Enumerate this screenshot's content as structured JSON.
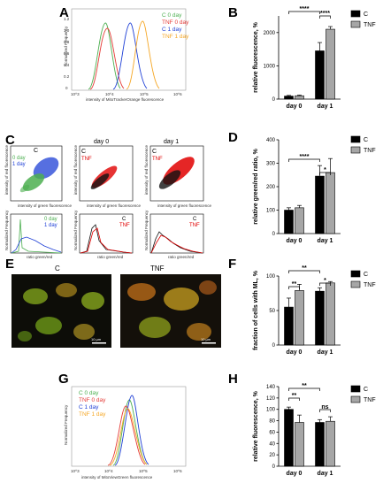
{
  "colors": {
    "c0": "#4caf50",
    "tnf0": "#e53935",
    "c1": "#1e3fd6",
    "tnf1": "#f5a623",
    "barC": "#000000",
    "barTNF": "#a6a6a6",
    "red": "#e00000",
    "black": "#111111"
  },
  "panels": {
    "A": "A",
    "B": "B",
    "C": "C",
    "D": "D",
    "E": "E",
    "F": "F",
    "G": "G",
    "H": "H"
  },
  "panelA": {
    "ylabel": "Normalized Frequency",
    "xlabel": "intensity of MitoTrackerOrange fluorescence",
    "xticks": [
      "10^3",
      "10^4",
      "10^5",
      "10^6"
    ],
    "yticks": [
      "0",
      "0.2",
      "0.4",
      "0.6",
      "0.8",
      "1.0",
      "1.2"
    ],
    "legend": [
      "C 0 day",
      "TNF 0 day",
      "C 1 day",
      "TNF 1 day"
    ]
  },
  "panelC": {
    "tl": {
      "title": "C",
      "legend": [
        "0 day",
        "1 day"
      ]
    },
    "tm": {
      "title": "day 0",
      "inner": "C",
      "legend2": "TNF"
    },
    "tr": {
      "title": "day 1",
      "inner": "C",
      "legend2": "TNF"
    },
    "scatter_xlabel": "intensity of green fluorescence",
    "scatter_ylabel": "intensity of red fluorescence",
    "hist_xlabel": "ratio green/red",
    "hist_ylabel": "Normalized Frequency",
    "bl": {
      "legend": [
        "0 day",
        "1 day"
      ]
    },
    "bm": {
      "legend": [
        "C",
        "TNF"
      ]
    },
    "br": {
      "legend": [
        "C",
        "TNF"
      ]
    }
  },
  "panelE": {
    "left": "C",
    "right": "TNF",
    "scale": "10 µm"
  },
  "panelG": {
    "ylabel": "Normalized Frequency",
    "xlabel": "intensity of MitoViewGreen fluorescence",
    "xticks": [
      "10^3",
      "10^4",
      "10^5",
      "10^6"
    ],
    "legend": [
      "C 0 day",
      "TNF 0 day",
      "C 1 day",
      "TNF 1 day"
    ]
  },
  "chart_data": [
    {
      "panel": "B",
      "type": "bar",
      "categories": [
        "day 0",
        "day 1"
      ],
      "series": [
        {
          "name": "C",
          "values": [
            90,
            1450
          ],
          "errors": [
            20,
            250
          ]
        },
        {
          "name": "TNF",
          "values": [
            100,
            2100
          ],
          "errors": [
            20,
            80
          ]
        }
      ],
      "ylabel": "relative fluorescence, %",
      "ylim": [
        0,
        2500
      ],
      "yticks": [
        0,
        1000,
        2000
      ],
      "legend": [
        "C",
        "TNF"
      ],
      "significance": [
        "****",
        "****"
      ]
    },
    {
      "panel": "D",
      "type": "bar",
      "categories": [
        "day 0",
        "day 1"
      ],
      "series": [
        {
          "name": "C",
          "values": [
            100,
            245
          ],
          "errors": [
            10,
            45
          ]
        },
        {
          "name": "TNF",
          "values": [
            110,
            260
          ],
          "errors": [
            10,
            60
          ]
        }
      ],
      "ylabel": "relative green/red ratio, %",
      "ylim": [
        0,
        400
      ],
      "yticks": [
        0,
        100,
        200,
        300,
        400
      ],
      "legend": [
        "C",
        "TNF"
      ],
      "significance": [
        "****",
        "*"
      ]
    },
    {
      "panel": "F",
      "type": "bar",
      "categories": [
        "day 0",
        "day 1"
      ],
      "series": [
        {
          "name": "C",
          "values": [
            55,
            78
          ],
          "errors": [
            13,
            5
          ]
        },
        {
          "name": "TNF",
          "values": [
            79,
            90
          ],
          "errors": [
            9,
            2
          ]
        }
      ],
      "ylabel": "fraction of cells with ML, %",
      "ylim": [
        0,
        100
      ],
      "yticks": [
        0,
        50,
        100
      ],
      "legend": [
        "C",
        "TNF"
      ],
      "significance": [
        "**",
        "**",
        "*"
      ]
    },
    {
      "panel": "H",
      "type": "bar",
      "categories": [
        "day 0",
        "day 1"
      ],
      "series": [
        {
          "name": "C",
          "values": [
            100,
            77
          ],
          "errors": [
            4,
            5
          ]
        },
        {
          "name": "TNF",
          "values": [
            77,
            79
          ],
          "errors": [
            13,
            8
          ]
        }
      ],
      "ylabel": "relative fluorescence, %",
      "ylim": [
        0,
        140
      ],
      "yticks": [
        0,
        20,
        40,
        60,
        80,
        100,
        120,
        140
      ],
      "legend": [
        "C",
        "TNF"
      ],
      "significance": [
        "**",
        "**",
        "ns"
      ]
    }
  ]
}
